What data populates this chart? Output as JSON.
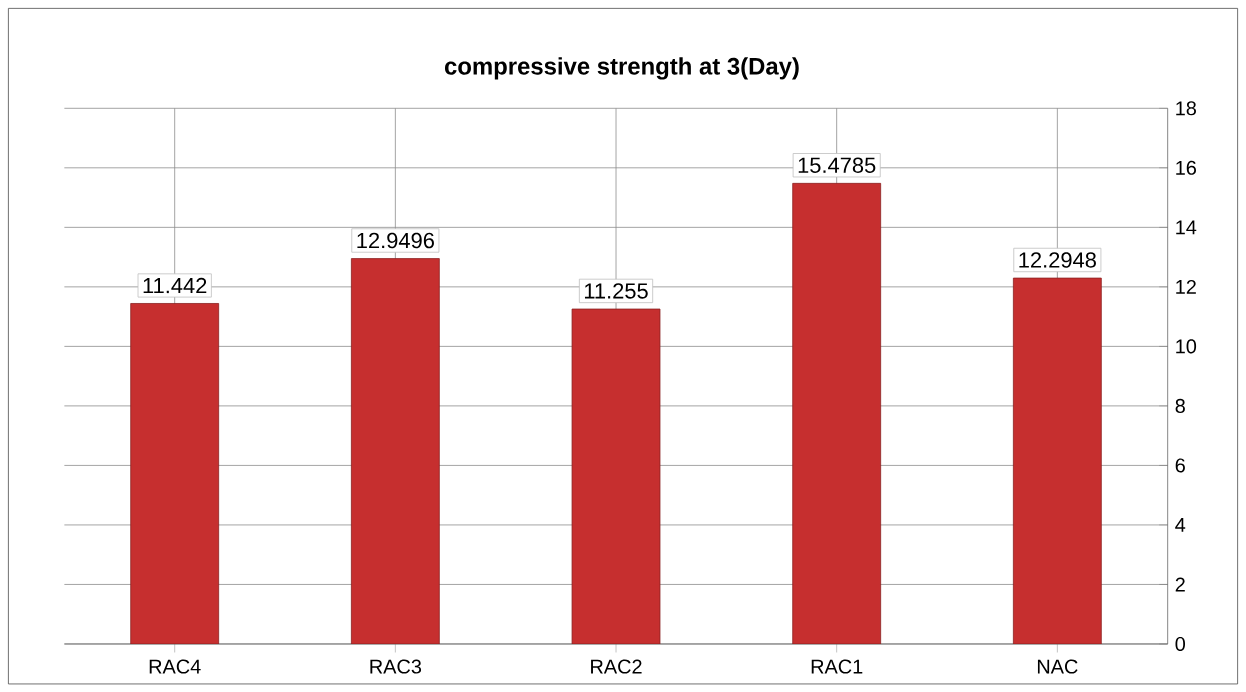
{
  "chart_data": {
    "type": "bar",
    "title": "compressive strength at 3(Day)",
    "categories": [
      "RAC4",
      "RAC3",
      "RAC2",
      "RAC1",
      "NAC"
    ],
    "values": [
      11.442,
      12.9496,
      11.255,
      15.4785,
      12.2948
    ],
    "color": "#c62f2f",
    "ylim": [
      0,
      18
    ],
    "yticks": [
      0,
      2,
      4,
      6,
      8,
      10,
      12,
      14,
      16,
      18
    ],
    "grid": true,
    "data_labels": true
  }
}
